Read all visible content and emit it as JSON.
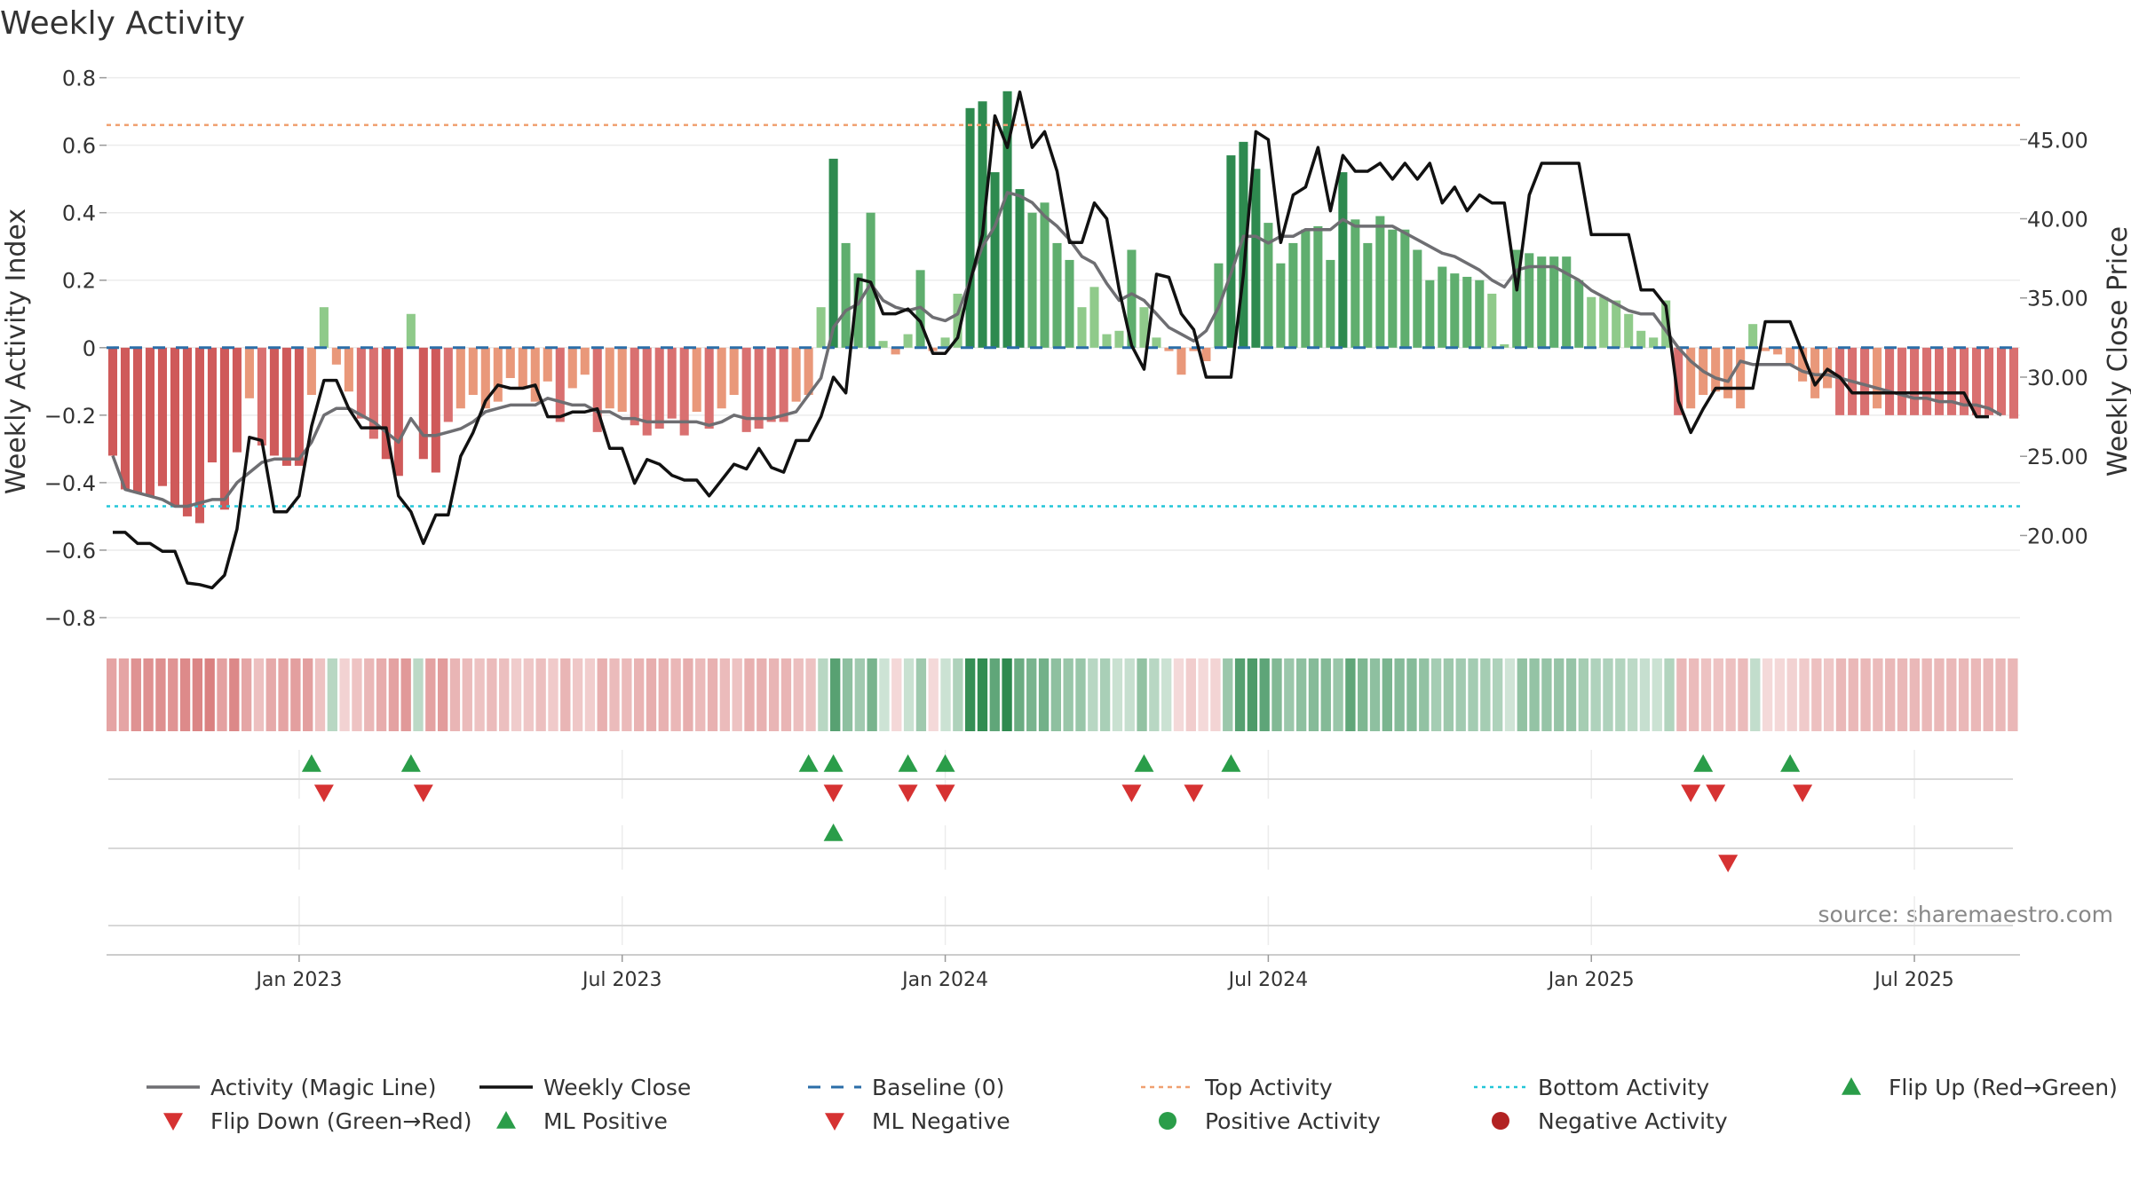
{
  "chart_data": {
    "type": "bar+line",
    "title": "Weekly Activity",
    "ylabel_left": "Weekly Activity Index",
    "ylabel_right": "Weekly Close Price",
    "ylim_left": [
      -0.85,
      0.82
    ],
    "ylim_right": [
      13.75,
      49.33
    ],
    "yticks_left": [
      {
        "v": 0.8,
        "label": "0.8"
      },
      {
        "v": 0.6,
        "label": "0.6"
      },
      {
        "v": 0.4,
        "label": "0.4"
      },
      {
        "v": 0.2,
        "label": "0.2"
      },
      {
        "v": 0,
        "label": "0"
      },
      {
        "v": -0.2,
        "label": "−0.2"
      },
      {
        "v": -0.4,
        "label": "−0.4"
      },
      {
        "v": -0.6,
        "label": "−0.6"
      },
      {
        "v": -0.8,
        "label": "−0.8"
      }
    ],
    "yticks_right": [
      {
        "v": 45,
        "label": "45.00"
      },
      {
        "v": 40,
        "label": "40.00"
      },
      {
        "v": 35,
        "label": "35.00"
      },
      {
        "v": 30,
        "label": "30.00"
      },
      {
        "v": 25,
        "label": "25.00"
      },
      {
        "v": 20,
        "label": "20.00"
      }
    ],
    "xticks": [
      {
        "week": 15,
        "label": "Jan 2023"
      },
      {
        "week": 41,
        "label": "Jul 2023"
      },
      {
        "week": 67,
        "label": "Jan 2024"
      },
      {
        "week": 93,
        "label": "Jul 2024"
      },
      {
        "week": 119,
        "label": "Jan 2025"
      },
      {
        "week": 145,
        "label": "Jul 2025"
      }
    ],
    "reference_lines": {
      "top_activity": 0.66,
      "bottom_activity": -0.47,
      "baseline": 0
    },
    "activity": [
      -0.32,
      -0.42,
      -0.43,
      -0.44,
      -0.41,
      -0.47,
      -0.5,
      -0.52,
      -0.34,
      -0.48,
      -0.31,
      -0.15,
      -0.29,
      -0.32,
      -0.35,
      -0.35,
      -0.14,
      0.12,
      -0.05,
      -0.13,
      -0.21,
      -0.27,
      -0.33,
      -0.38,
      0.1,
      -0.33,
      -0.37,
      -0.22,
      -0.18,
      -0.14,
      -0.18,
      -0.16,
      -0.09,
      -0.12,
      -0.16,
      -0.1,
      -0.22,
      -0.12,
      -0.08,
      -0.25,
      -0.18,
      -0.19,
      -0.23,
      -0.26,
      -0.24,
      -0.21,
      -0.26,
      -0.19,
      -0.24,
      -0.18,
      -0.14,
      -0.25,
      -0.24,
      -0.22,
      -0.22,
      -0.16,
      -0.14,
      0.12,
      0.56,
      0.31,
      0.22,
      0.4,
      0.02,
      -0.02,
      0.04,
      0.23,
      -0.01,
      0.03,
      0.16,
      0.71,
      0.73,
      0.52,
      0.76,
      0.47,
      0.4,
      0.43,
      0.31,
      0.26,
      0.12,
      0.18,
      0.04,
      0.05,
      0.29,
      0.12,
      0.03,
      -0.01,
      -0.08,
      -0.01,
      -0.04,
      0.25,
      0.57,
      0.61,
      0.53,
      0.37,
      0.25,
      0.31,
      0.35,
      0.36,
      0.26,
      0.52,
      0.38,
      0.31,
      0.39,
      0.35,
      0.35,
      0.29,
      0.2,
      0.24,
      0.22,
      0.21,
      0.2,
      0.16,
      0.01,
      0.29,
      0.28,
      0.27,
      0.27,
      0.27,
      0.2,
      0.15,
      0.15,
      0.14,
      0.1,
      0.05,
      0.03,
      0.14,
      -0.2,
      -0.18,
      -0.14,
      -0.13,
      -0.15,
      -0.18,
      0.07,
      -0.01,
      -0.02,
      -0.05,
      -0.1,
      -0.15,
      -0.12,
      -0.2,
      -0.2,
      -0.2,
      -0.18,
      -0.2,
      -0.2,
      -0.2,
      -0.2,
      -0.2,
      -0.2,
      -0.2,
      -0.2,
      -0.2,
      -0.2,
      -0.21
    ],
    "magic_line": [
      -0.32,
      -0.42,
      -0.43,
      -0.44,
      -0.45,
      -0.47,
      -0.47,
      -0.46,
      -0.45,
      -0.45,
      -0.4,
      -0.37,
      -0.34,
      -0.33,
      -0.33,
      -0.33,
      -0.28,
      -0.2,
      -0.18,
      -0.18,
      -0.2,
      -0.22,
      -0.25,
      -0.28,
      -0.21,
      -0.26,
      -0.26,
      -0.25,
      -0.24,
      -0.22,
      -0.19,
      -0.18,
      -0.17,
      -0.17,
      -0.17,
      -0.15,
      -0.16,
      -0.17,
      -0.17,
      -0.19,
      -0.19,
      -0.21,
      -0.21,
      -0.22,
      -0.22,
      -0.22,
      -0.22,
      -0.22,
      -0.23,
      -0.22,
      -0.2,
      -0.21,
      -0.21,
      -0.21,
      -0.2,
      -0.19,
      -0.14,
      -0.09,
      0.06,
      0.11,
      0.13,
      0.19,
      0.14,
      0.12,
      0.11,
      0.12,
      0.09,
      0.08,
      0.1,
      0.2,
      0.3,
      0.36,
      0.46,
      0.45,
      0.43,
      0.39,
      0.36,
      0.32,
      0.27,
      0.25,
      0.19,
      0.14,
      0.16,
      0.14,
      0.1,
      0.06,
      0.04,
      0.02,
      0.05,
      0.12,
      0.22,
      0.33,
      0.33,
      0.31,
      0.33,
      0.33,
      0.35,
      0.35,
      0.35,
      0.38,
      0.36,
      0.36,
      0.36,
      0.36,
      0.34,
      0.32,
      0.3,
      0.28,
      0.27,
      0.25,
      0.23,
      0.2,
      0.18,
      0.23,
      0.24,
      0.24,
      0.24,
      0.22,
      0.2,
      0.17,
      0.15,
      0.13,
      0.11,
      0.1,
      0.1,
      0.05,
      0.0,
      -0.04,
      -0.07,
      -0.09,
      -0.1,
      -0.04,
      -0.05,
      -0.05,
      -0.05,
      -0.05,
      -0.07,
      -0.08,
      -0.08,
      -0.09,
      -0.1,
      -0.11,
      -0.12,
      -0.13,
      -0.14,
      -0.15,
      -0.15,
      -0.16,
      -0.16,
      -0.17,
      -0.17,
      -0.18,
      -0.2
    ],
    "weekly_close": [
      20.2,
      20.2,
      19.5,
      19.5,
      19.0,
      19.0,
      17.0,
      16.9,
      16.7,
      17.5,
      20.4,
      26.2,
      26.0,
      21.5,
      21.5,
      22.5,
      26.9,
      29.8,
      29.8,
      28.0,
      26.8,
      26.8,
      26.8,
      22.5,
      21.5,
      19.5,
      21.3,
      21.3,
      25.0,
      26.5,
      28.5,
      29.5,
      29.3,
      29.3,
      29.5,
      27.5,
      27.5,
      27.8,
      27.8,
      28.0,
      25.5,
      25.5,
      23.3,
      24.8,
      24.5,
      23.8,
      23.5,
      23.5,
      22.5,
      23.5,
      24.5,
      24.2,
      25.5,
      24.3,
      24.0,
      26.0,
      26.0,
      27.5,
      30.0,
      29.0,
      36.2,
      36.0,
      34.0,
      34.0,
      34.3,
      33.5,
      31.5,
      31.5,
      32.5,
      36.0,
      39.0,
      46.5,
      44.5,
      48.0,
      44.5,
      45.5,
      43.0,
      38.5,
      38.5,
      41.0,
      40.0,
      35.5,
      32.0,
      30.5,
      36.5,
      36.3,
      34.0,
      33.0,
      30.0,
      30.0,
      30.0,
      36.5,
      45.5,
      45.0,
      38.5,
      41.5,
      42.0,
      44.5,
      40.5,
      44.0,
      43.0,
      43.0,
      43.5,
      42.5,
      43.5,
      42.5,
      43.5,
      41.0,
      42.0,
      40.5,
      41.5,
      41.0,
      41.0,
      35.5,
      41.5,
      43.5,
      43.5,
      43.5,
      43.5,
      39.0,
      39.0,
      39.0,
      39.0,
      35.5,
      35.5,
      34.5,
      28.5,
      26.5,
      28.0,
      29.3,
      29.3,
      29.3,
      29.3,
      33.5,
      33.5,
      33.5,
      31.5,
      29.5,
      30.5,
      30.0,
      29.0,
      29.0,
      29.0,
      29.0,
      29.0,
      29.0,
      29.0,
      29.0,
      29.0,
      29.0,
      27.5,
      27.5
    ],
    "strength_strip_weeks": 156,
    "flip_up_weeks": [
      16,
      24,
      56,
      58,
      64,
      67,
      83,
      90,
      128,
      135
    ],
    "flip_down_weeks": [
      17,
      25,
      58,
      64,
      67,
      82,
      87,
      127,
      129,
      136
    ],
    "ml_positive_weeks": [
      58
    ],
    "ml_negative_weeks": [
      130
    ],
    "source": "source: sharemaestro.com",
    "legend": [
      {
        "key": "magic",
        "label": "Activity (Magic Line)"
      },
      {
        "key": "close",
        "label": "Weekly Close"
      },
      {
        "key": "baseline",
        "label": "Baseline (0)"
      },
      {
        "key": "top",
        "label": "Top Activity"
      },
      {
        "key": "bottom",
        "label": "Bottom Activity"
      },
      {
        "key": "flipup",
        "label": "Flip Up (Red→Green)"
      },
      {
        "key": "flipdown",
        "label": "Flip Down (Green→Red)"
      },
      {
        "key": "mlpos",
        "label": "ML Positive"
      },
      {
        "key": "mlneg",
        "label": "ML Negative"
      },
      {
        "key": "posact",
        "label": "Positive Activity"
      },
      {
        "key": "negact",
        "label": "Negative Activity"
      }
    ],
    "colors": {
      "pos_strong": "#2e8a4f",
      "pos_mid": "#5fae6e",
      "pos_light": "#8fca8a",
      "neg_strong": "#cf5a5a",
      "neg_mid": "#d97070",
      "neg_light": "#e9987a",
      "magic": "#6e6e72",
      "close": "#111111",
      "baseline": "#2b6ea8",
      "top": "#f0a070",
      "bottom": "#22c6d8",
      "up_marker": "#2a9d49",
      "down_marker": "#d63232",
      "legend_pos_dot": "#2a9d49",
      "legend_neg_dot": "#b22222"
    }
  }
}
